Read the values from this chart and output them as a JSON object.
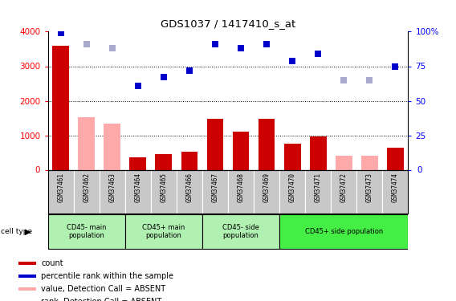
{
  "title": "GDS1037 / 1417410_s_at",
  "samples": [
    "GSM37461",
    "GSM37462",
    "GSM37463",
    "GSM37464",
    "GSM37465",
    "GSM37466",
    "GSM37467",
    "GSM37468",
    "GSM37469",
    "GSM37470",
    "GSM37471",
    "GSM37472",
    "GSM37473",
    "GSM37474"
  ],
  "counts": [
    3580,
    0,
    0,
    370,
    460,
    530,
    1480,
    1120,
    1480,
    770,
    980,
    0,
    0,
    640
  ],
  "counts_absent": [
    0,
    1520,
    1340,
    0,
    0,
    0,
    0,
    0,
    0,
    0,
    0,
    420,
    420,
    0
  ],
  "percentile_ranks": [
    99,
    0,
    0,
    61,
    67,
    72,
    91,
    88,
    91,
    79,
    84,
    0,
    0,
    75
  ],
  "percentile_ranks_absent": [
    0,
    91,
    88,
    0,
    0,
    0,
    0,
    0,
    0,
    0,
    0,
    65,
    65,
    0
  ],
  "cell_type_groups": [
    {
      "label": "CD45- main\npopulation",
      "start": 0,
      "end": 3
    },
    {
      "label": "CD45+ main\npopulation",
      "start": 3,
      "end": 6
    },
    {
      "label": "CD45- side\npopulation",
      "start": 6,
      "end": 9
    },
    {
      "label": "CD45+ side population",
      "start": 9,
      "end": 14
    }
  ],
  "bar_color_present": "#cc0000",
  "bar_color_absent": "#ffaaaa",
  "dot_color_present": "#0000cc",
  "dot_color_absent": "#aaaacc",
  "ylim_left": [
    0,
    4000
  ],
  "ylim_right": [
    0,
    100
  ],
  "yticks_left": [
    0,
    1000,
    2000,
    3000,
    4000
  ],
  "yticks_right": [
    0,
    25,
    50,
    75,
    100
  ],
  "ytick_labels_right": [
    "0",
    "25",
    "50",
    "75",
    "100%"
  ],
  "cell_type_color_light": "#b0f0b0",
  "cell_type_color_bright": "#44ee44",
  "tick_bg_color": "#cccccc",
  "legend_items": [
    {
      "label": "count",
      "color": "#cc0000"
    },
    {
      "label": "percentile rank within the sample",
      "color": "#0000cc"
    },
    {
      "label": "value, Detection Call = ABSENT",
      "color": "#ffaaaa"
    },
    {
      "label": "rank, Detection Call = ABSENT",
      "color": "#aaaacc"
    }
  ]
}
